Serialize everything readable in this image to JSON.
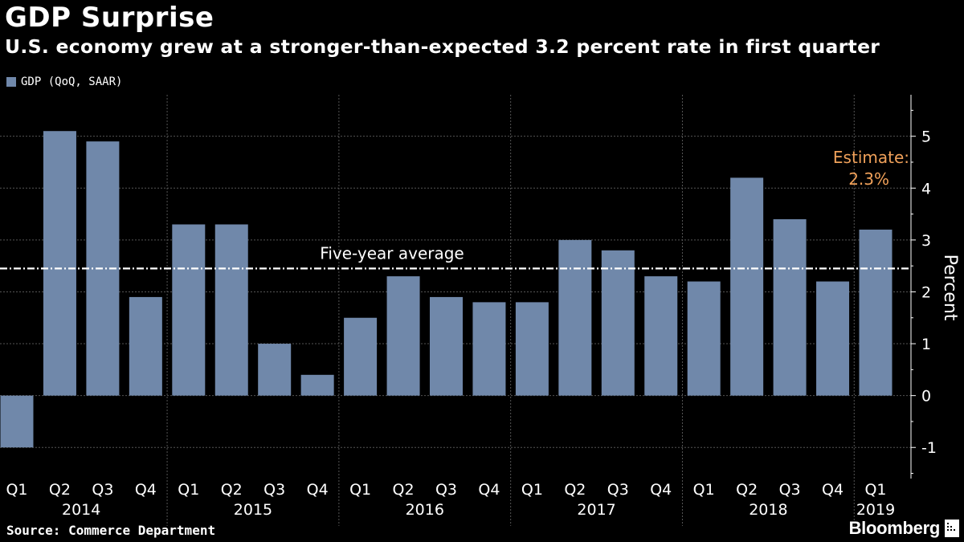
{
  "title": "GDP Surprise",
  "subtitle": "U.S. economy grew at a stronger-than-expected 3.2 percent rate in first quarter",
  "source": "Source: Commerce Department",
  "brand": "Bloomberg",
  "colors": {
    "background": "#000000",
    "bar": "#7088aa",
    "text": "#ffffff",
    "estimate": "#f0a15a",
    "grid": "#555555",
    "average_line": "#ffffff"
  },
  "chart_data": {
    "type": "bar",
    "title": "GDP Surprise",
    "subtitle": "U.S. economy grew at a stronger-than-expected 3.2 percent rate in first quarter",
    "legend": [
      {
        "name": "GDP (QoQ, SAAR)",
        "color": "#7088aa"
      }
    ],
    "legend_position": "top-left",
    "ylabel": "Percent",
    "y_axis_side": "right",
    "ylim": [
      -1.6,
      5.8
    ],
    "yticks": [
      -1,
      0,
      1,
      2,
      3,
      4,
      5
    ],
    "grid": true,
    "categories": [
      "Q1",
      "Q2",
      "Q3",
      "Q4",
      "Q1",
      "Q2",
      "Q3",
      "Q4",
      "Q1",
      "Q2",
      "Q3",
      "Q4",
      "Q1",
      "Q2",
      "Q3",
      "Q4",
      "Q1",
      "Q2",
      "Q3",
      "Q4",
      "Q1"
    ],
    "years": [
      {
        "label": "2014",
        "start": 0,
        "count": 4
      },
      {
        "label": "2015",
        "start": 4,
        "count": 4
      },
      {
        "label": "2016",
        "start": 8,
        "count": 4
      },
      {
        "label": "2017",
        "start": 12,
        "count": 4
      },
      {
        "label": "2018",
        "start": 16,
        "count": 4
      },
      {
        "label": "2019",
        "start": 20,
        "count": 1
      }
    ],
    "series": [
      {
        "name": "GDP (QoQ, SAAR)",
        "values": [
          -1.0,
          5.1,
          4.9,
          1.9,
          3.3,
          3.3,
          1.0,
          0.4,
          1.5,
          2.3,
          1.9,
          1.8,
          1.8,
          3.0,
          2.8,
          2.3,
          2.2,
          4.2,
          3.4,
          2.2,
          3.2
        ]
      }
    ],
    "reference_line": {
      "label": "Five-year average",
      "value": 2.45
    },
    "annotation": {
      "line1": "Estimate:",
      "line2": "2.3%"
    }
  }
}
